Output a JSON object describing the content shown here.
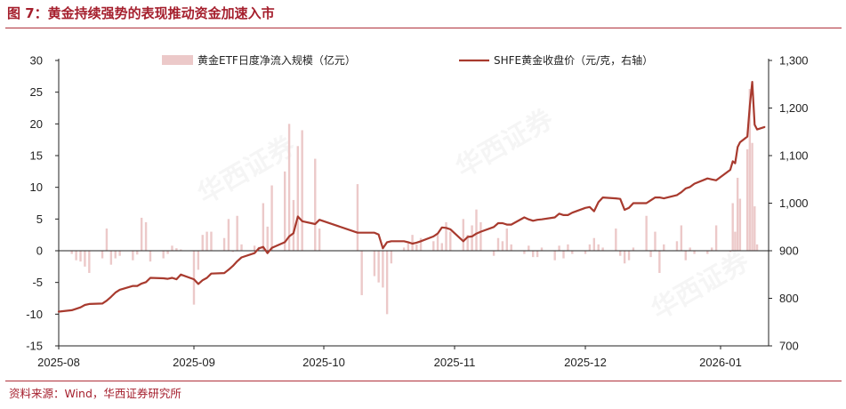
{
  "figure": {
    "title": "图 7：黄金持续强势的表现推动资金加速入市",
    "source": "资料来源：Wind，华西证券研究所"
  },
  "chart_data": {
    "type": "bar+line",
    "x_ticks": [
      "2025-08",
      "2025-09",
      "2025-10",
      "2025-11",
      "2025-12",
      "2026-01"
    ],
    "y_left": {
      "min": -15,
      "max": 30,
      "ticks": [
        -15,
        -10,
        -5,
        0,
        5,
        10,
        15,
        20,
        25,
        30
      ]
    },
    "y_right": {
      "min": 700,
      "max": 1300,
      "ticks": [
        "700",
        "800",
        "900",
        "1,000",
        "1,100",
        "1,200",
        "1,300"
      ]
    },
    "colors": {
      "bars": "#ecc9c9",
      "line": "#a83a2e",
      "axis": "#222222"
    },
    "series": [
      {
        "name": "黄金ETF日度净流入规模（亿元）",
        "kind": "bar",
        "axis": "left",
        "dates": [
          "2025-08-04",
          "2025-08-05",
          "2025-08-06",
          "2025-08-07",
          "2025-08-08",
          "2025-08-11",
          "2025-08-12",
          "2025-08-13",
          "2025-08-14",
          "2025-08-15",
          "2025-08-18",
          "2025-08-19",
          "2025-08-20",
          "2025-08-21",
          "2025-08-22",
          "2025-08-25",
          "2025-08-26",
          "2025-08-27",
          "2025-08-28",
          "2025-08-29",
          "2025-09-01",
          "2025-09-02",
          "2025-09-03",
          "2025-09-04",
          "2025-09-05",
          "2025-09-08",
          "2025-09-09",
          "2025-09-10",
          "2025-09-11",
          "2025-09-12",
          "2025-09-15",
          "2025-09-16",
          "2025-09-17",
          "2025-09-18",
          "2025-09-19",
          "2025-09-22",
          "2025-09-23",
          "2025-09-24",
          "2025-09-25",
          "2025-09-26",
          "2025-09-29",
          "2025-09-30",
          "2025-10-09",
          "2025-10-10",
          "2025-10-13",
          "2025-10-14",
          "2025-10-15",
          "2025-10-16",
          "2025-10-17",
          "2025-10-20",
          "2025-10-21",
          "2025-10-22",
          "2025-10-23",
          "2025-10-24",
          "2025-10-27",
          "2025-10-28",
          "2025-10-29",
          "2025-10-30",
          "2025-10-31",
          "2025-11-03",
          "2025-11-04",
          "2025-11-05",
          "2025-11-06",
          "2025-11-07",
          "2025-11-10",
          "2025-11-11",
          "2025-11-12",
          "2025-11-13",
          "2025-11-14",
          "2025-11-17",
          "2025-11-18",
          "2025-11-19",
          "2025-11-20",
          "2025-11-21",
          "2025-11-24",
          "2025-11-25",
          "2025-11-26",
          "2025-11-27",
          "2025-11-28",
          "2025-12-01",
          "2025-12-02",
          "2025-12-03",
          "2025-12-04",
          "2025-12-05",
          "2025-12-08",
          "2025-12-09",
          "2025-12-10",
          "2025-12-11",
          "2025-12-12",
          "2025-12-15",
          "2025-12-16",
          "2025-12-17",
          "2025-12-18",
          "2025-12-19",
          "2025-12-22",
          "2025-12-23",
          "2025-12-24",
          "2025-12-25",
          "2025-12-26",
          "2025-12-29",
          "2025-12-30",
          "2025-12-31",
          "2026-01-05",
          "2026-01-06",
          "2026-01-07",
          "2026-01-08",
          "2026-01-09",
          "2026-01-12",
          "2026-01-13",
          "2026-01-14",
          "2026-01-15",
          "2026-01-16"
        ],
        "values": [
          -0.5,
          -1.5,
          -1.7,
          -2.5,
          -3.5,
          -1.2,
          3.5,
          -2.2,
          -1.2,
          -0.8,
          -1.5,
          -0.6,
          5.2,
          4.5,
          -1.7,
          -1.2,
          -0.5,
          0.8,
          0.4,
          0.2,
          -8.5,
          -3.0,
          2.5,
          3.0,
          3.0,
          2.0,
          5.0,
          -0.2,
          5.5,
          1.0,
          0.8,
          0.6,
          7.5,
          3.8,
          10.3,
          12.5,
          20.0,
          8.0,
          16.5,
          19.0,
          14.5,
          3.5,
          10.5,
          -7.0,
          -4.0,
          -5.0,
          -5.8,
          -10.0,
          -2.0,
          0.5,
          1.2,
          2.5,
          1.0,
          2.0,
          1.5,
          2.5,
          1.2,
          4.5,
          3.0,
          5.0,
          2.5,
          4.0,
          6.5,
          4.5,
          -0.8,
          2.0,
          1.5,
          3.5,
          1.0,
          -0.5,
          0.8,
          -1.0,
          -1.0,
          0.5,
          -1.5,
          0.8,
          -1.2,
          1.0,
          -0.5,
          -0.5,
          1.0,
          2.0,
          1.0,
          0.5,
          3.5,
          -0.8,
          -2.0,
          -1.5,
          0.5,
          5.5,
          -1.0,
          3.0,
          -3.5,
          1.0,
          1.5,
          4.0,
          -1.5,
          0.5,
          -0.5,
          -0.5,
          0.5,
          4.0,
          -0.2,
          7.5,
          3.0,
          11.5,
          8.2,
          16.0,
          25.5,
          17.0,
          7.0,
          1.0
        ]
      },
      {
        "name": "SHFE黄金收盘价（元/克，右轴）",
        "kind": "line",
        "axis": "right",
        "dates": [
          "2025-08-01",
          "2025-08-04",
          "2025-08-05",
          "2025-08-06",
          "2025-08-07",
          "2025-08-08",
          "2025-08-11",
          "2025-08-12",
          "2025-08-13",
          "2025-08-14",
          "2025-08-15",
          "2025-08-18",
          "2025-08-19",
          "2025-08-20",
          "2025-08-21",
          "2025-08-22",
          "2025-08-25",
          "2025-08-26",
          "2025-08-27",
          "2025-08-28",
          "2025-08-29",
          "2025-09-01",
          "2025-09-02",
          "2025-09-03",
          "2025-09-04",
          "2025-09-05",
          "2025-09-08",
          "2025-09-09",
          "2025-09-10",
          "2025-09-11",
          "2025-09-12",
          "2025-09-15",
          "2025-09-16",
          "2025-09-17",
          "2025-09-18",
          "2025-09-19",
          "2025-09-22",
          "2025-09-23",
          "2025-09-24",
          "2025-09-25",
          "2025-09-26",
          "2025-09-29",
          "2025-09-30",
          "2025-10-09",
          "2025-10-10",
          "2025-10-13",
          "2025-10-14",
          "2025-10-15",
          "2025-10-16",
          "2025-10-17",
          "2025-10-20",
          "2025-10-21",
          "2025-10-22",
          "2025-10-23",
          "2025-10-24",
          "2025-10-27",
          "2025-10-28",
          "2025-10-29",
          "2025-10-30",
          "2025-10-31",
          "2025-11-03",
          "2025-11-04",
          "2025-11-05",
          "2025-11-06",
          "2025-11-07",
          "2025-11-10",
          "2025-11-11",
          "2025-11-12",
          "2025-11-13",
          "2025-11-14",
          "2025-11-17",
          "2025-11-18",
          "2025-11-19",
          "2025-11-20",
          "2025-11-21",
          "2025-11-24",
          "2025-11-25",
          "2025-11-26",
          "2025-11-27",
          "2025-11-28",
          "2025-12-01",
          "2025-12-02",
          "2025-12-03",
          "2025-12-04",
          "2025-12-05",
          "2025-12-08",
          "2025-12-09",
          "2025-12-10",
          "2025-12-11",
          "2025-12-12",
          "2025-12-15",
          "2025-12-16",
          "2025-12-17",
          "2025-12-18",
          "2025-12-19",
          "2025-12-22",
          "2025-12-23",
          "2025-12-24",
          "2025-12-25",
          "2025-12-26",
          "2025-12-29",
          "2025-12-30",
          "2025-12-31",
          "2026-01-05",
          "2026-01-06",
          "2026-01-07",
          "2026-01-08",
          "2026-01-09",
          "2026-01-12",
          "2026-01-13",
          "2026-01-14",
          "2026-01-15",
          "2026-01-16",
          "2026-01-19"
        ],
        "values": [
          772,
          775,
          778,
          781,
          786,
          788,
          789,
          795,
          803,
          812,
          818,
          826,
          826,
          831,
          834,
          843,
          842,
          841,
          843,
          840,
          850,
          840,
          830,
          838,
          843,
          852,
          853,
          860,
          868,
          878,
          886,
          895,
          905,
          908,
          895,
          906,
          918,
          930,
          937,
          972,
          962,
          956,
          965,
          938,
          938,
          938,
          934,
          905,
          918,
          920,
          920,
          918,
          915,
          917,
          920,
          930,
          936,
          949,
          948,
          945,
          920,
          929,
          930,
          936,
          940,
          950,
          958,
          958,
          955,
          955,
          970,
          966,
          963,
          965,
          966,
          970,
          978,
          975,
          975,
          980,
          990,
          992,
          983,
          1002,
          1012,
          1010,
          1009,
          986,
          990,
          1000,
          1000,
          1006,
          1012,
          1012,
          1010,
          1017,
          1023,
          1031,
          1034,
          1041,
          1052,
          1050,
          1048,
          1070,
          1088,
          1084,
          1118,
          1128,
          1140,
          1203,
          1255,
          1165,
          1155,
          1160
        ]
      }
    ]
  }
}
